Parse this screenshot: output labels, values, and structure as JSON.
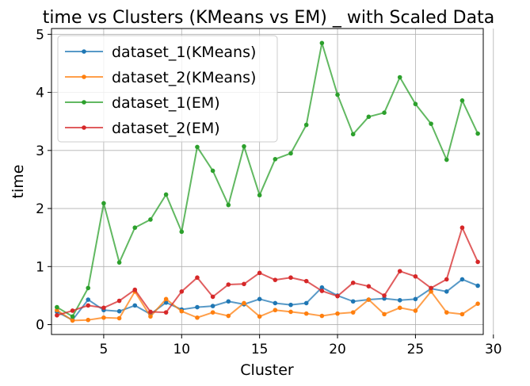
{
  "chart_data": {
    "type": "line",
    "title": "time vs Clusters (KMeans vs EM) _ with Scaled Data",
    "xlabel": "Cluster",
    "ylabel": "time",
    "xlim": [
      1.65,
      29.35
    ],
    "ylim": [
      -0.17,
      5.1
    ],
    "xticks": [
      5,
      10,
      15,
      20,
      25,
      30
    ],
    "yticks": [
      0,
      1,
      2,
      3,
      4,
      5
    ],
    "grid": true,
    "legend_position": "top-left",
    "x": [
      2,
      3,
      4,
      5,
      6,
      7,
      8,
      9,
      10,
      11,
      12,
      13,
      14,
      15,
      16,
      17,
      18,
      19,
      20,
      21,
      22,
      23,
      24,
      25,
      26,
      27,
      28,
      29
    ],
    "series": [
      {
        "name": "dataset_1(KMeans)",
        "color": "#1f77b4",
        "values": [
          0.22,
          0.08,
          0.43,
          0.25,
          0.23,
          0.33,
          0.18,
          0.38,
          0.26,
          0.3,
          0.32,
          0.4,
          0.35,
          0.44,
          0.37,
          0.34,
          0.37,
          0.64,
          0.5,
          0.4,
          0.43,
          0.45,
          0.42,
          0.44,
          0.62,
          0.57,
          0.78,
          0.67
        ]
      },
      {
        "name": "dataset_2(KMeans)",
        "color": "#ff7f0e",
        "values": [
          0.25,
          0.07,
          0.08,
          0.12,
          0.11,
          0.57,
          0.14,
          0.44,
          0.23,
          0.12,
          0.21,
          0.15,
          0.37,
          0.14,
          0.25,
          0.22,
          0.19,
          0.15,
          0.19,
          0.21,
          0.43,
          0.18,
          0.29,
          0.24,
          0.57,
          0.21,
          0.18,
          0.36
        ]
      },
      {
        "name": "dataset_1(EM)",
        "color": "#2ca02c",
        "values": [
          0.3,
          0.14,
          0.63,
          2.09,
          1.07,
          1.67,
          1.81,
          2.24,
          1.6,
          3.06,
          2.65,
          2.06,
          3.07,
          2.23,
          2.85,
          2.95,
          3.44,
          4.85,
          3.96,
          3.28,
          3.58,
          3.65,
          4.26,
          3.8,
          3.46,
          2.84,
          3.86,
          3.29
        ]
      },
      {
        "name": "dataset_2(EM)",
        "color": "#d62728",
        "values": [
          0.16,
          0.24,
          0.33,
          0.29,
          0.41,
          0.6,
          0.22,
          0.21,
          0.57,
          0.81,
          0.48,
          0.69,
          0.7,
          0.89,
          0.77,
          0.81,
          0.75,
          0.58,
          0.49,
          0.72,
          0.66,
          0.5,
          0.92,
          0.83,
          0.63,
          0.78,
          1.67,
          1.08
        ]
      }
    ]
  }
}
